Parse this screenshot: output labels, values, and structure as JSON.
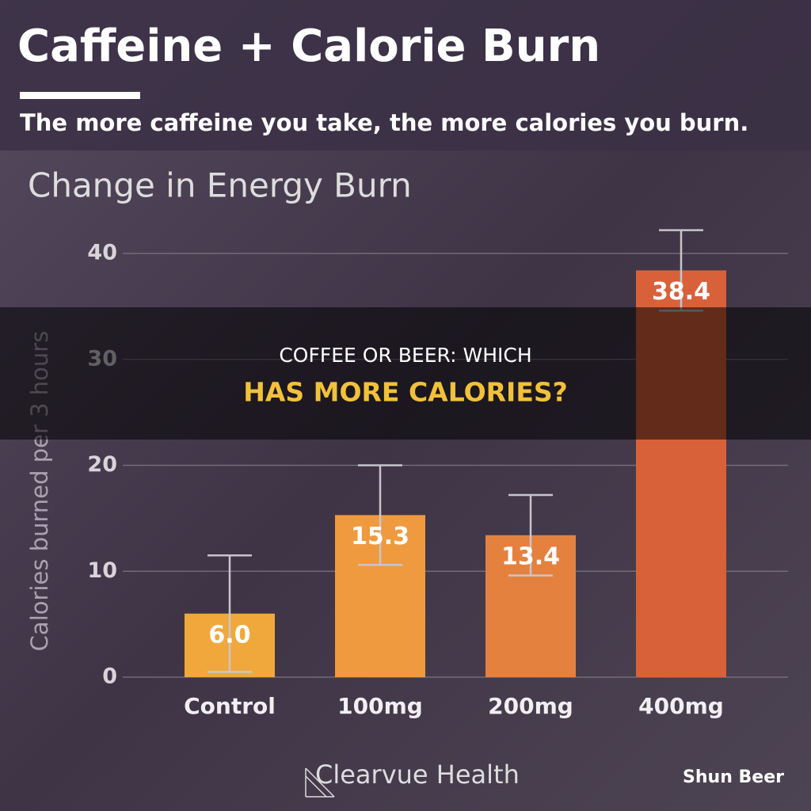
{
  "chart_data": {
    "type": "bar",
    "title": "Caffeine + Calorie Burn",
    "subtitle": "The more caffeine you take, the more calories you burn.",
    "chart_title": "Change in Energy Burn",
    "y_label": "Calories burned per 3 hours",
    "categories": [
      "Control",
      "100mg",
      "200mg",
      "400mg"
    ],
    "values": [
      6.0,
      15.3,
      13.4,
      38.4
    ],
    "value_labels": [
      "6.0",
      "15.3",
      "13.4",
      "38.4"
    ],
    "errors": [
      5.5,
      4.7,
      3.8,
      3.8
    ],
    "colors": [
      "#f0a83c",
      "#ef9a3e",
      "#e5813e",
      "#d9613a"
    ],
    "ylim": [
      0,
      43
    ],
    "yticks": [
      0,
      10,
      20,
      30,
      40
    ],
    "grid": true
  },
  "overlay": {
    "line1": "COFFEE OR BEER: WHICH",
    "line2": "HAS MORE CALORIES?"
  },
  "footer": {
    "brand": "Clearvue Health",
    "watermark": "Shun Beer"
  }
}
